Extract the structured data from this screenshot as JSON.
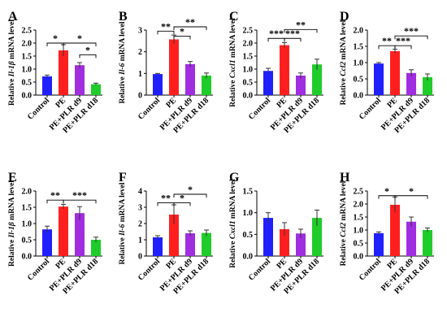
{
  "colors": {
    "bars": [
      "#1f1fff",
      "#ff1f1f",
      "#a02de0",
      "#1fcc2a"
    ],
    "axis": "#000000",
    "error": "#333333"
  },
  "chart_data": [
    {
      "type": "bar",
      "panel": "A",
      "ylabel_pre": "Relative ",
      "ylabel_gene": "Il-1β",
      "ylabel_post": " mRNA level",
      "categories": [
        "Control",
        "PE",
        "PE+PLR d9",
        "PE+PLR d18"
      ],
      "values": [
        0.72,
        1.72,
        1.15,
        0.42
      ],
      "errors": [
        0.05,
        0.22,
        0.1,
        0.04
      ],
      "ylim": [
        0,
        2.5
      ],
      "yticks": [
        "0.0",
        "0.5",
        "1.0",
        "1.5",
        "2.0",
        "2.5"
      ],
      "tick_values": [
        0,
        0.5,
        1.0,
        1.5,
        2.0,
        2.5
      ],
      "sig": [
        {
          "from": 0,
          "to": 1,
          "y": 2.0,
          "label": "*"
        },
        {
          "from": 1,
          "to": 3,
          "y": 2.0,
          "label": "*"
        },
        {
          "from": 2,
          "to": 3,
          "y": 1.55,
          "label": "*"
        }
      ]
    },
    {
      "type": "bar",
      "panel": "B",
      "ylabel_pre": "Relative ",
      "ylabel_gene": "Il-6",
      "ylabel_post": " mRNA level",
      "categories": [
        "Control",
        "PE",
        "PE+PLR d9",
        "PE+PLR d18"
      ],
      "values": [
        0.97,
        2.57,
        1.43,
        0.9
      ],
      "errors": [
        0.03,
        0.2,
        0.12,
        0.12
      ],
      "ylim": [
        0,
        3
      ],
      "yticks": [
        "0",
        "1",
        "2",
        "3"
      ],
      "tick_values": [
        0,
        1,
        2,
        3
      ],
      "sig": [
        {
          "from": 0,
          "to": 1,
          "y": 2.95,
          "label": "**"
        },
        {
          "from": 1,
          "to": 3,
          "y": 3.15,
          "label": "**"
        },
        {
          "from": 1,
          "to": 2,
          "y": 2.72,
          "label": "*"
        }
      ]
    },
    {
      "type": "bar",
      "panel": "C",
      "ylabel_pre": "Relative ",
      "ylabel_gene": "Cxcl1",
      "ylabel_post": " mRNA level",
      "categories": [
        "Control",
        "PE",
        "PE+PLR d9",
        "PE+PLR d18"
      ],
      "values": [
        0.93,
        1.92,
        0.75,
        1.18
      ],
      "errors": [
        0.1,
        0.1,
        0.1,
        0.2
      ],
      "ylim": [
        0,
        2.5
      ],
      "yticks": [
        "0.0",
        "0.5",
        "1.0",
        "1.5",
        "2.0",
        "2.5"
      ],
      "tick_values": [
        0,
        0.5,
        1.0,
        1.5,
        2.0,
        2.5
      ],
      "sig": [
        {
          "from": 0,
          "to": 1,
          "y": 2.18,
          "label": "***"
        },
        {
          "from": 1,
          "to": 2,
          "y": 2.18,
          "label": "***"
        },
        {
          "from": 1,
          "to": 3,
          "y": 2.52,
          "label": "**"
        }
      ]
    },
    {
      "type": "bar",
      "panel": "D",
      "ylabel_pre": "Relative ",
      "ylabel_gene": "Ccl2",
      "ylabel_post": " mRNA level",
      "categories": [
        "Control",
        "PE",
        "PE+PLR d9",
        "PE+PLR d18"
      ],
      "values": [
        0.97,
        1.35,
        0.68,
        0.55
      ],
      "errors": [
        0.03,
        0.06,
        0.1,
        0.1
      ],
      "ylim": [
        0,
        2.0
      ],
      "yticks": [
        "0.0",
        "0.5",
        "1.0",
        "1.5",
        "2.0"
      ],
      "tick_values": [
        0,
        0.5,
        1.0,
        1.5,
        2.0
      ],
      "sig": [
        {
          "from": 0,
          "to": 1,
          "y": 1.52,
          "label": "**"
        },
        {
          "from": 1,
          "to": 2,
          "y": 1.52,
          "label": "***"
        },
        {
          "from": 1,
          "to": 3,
          "y": 1.82,
          "label": "***"
        }
      ]
    },
    {
      "type": "bar",
      "panel": "E",
      "ylabel_pre": "Relative ",
      "ylabel_gene": "Il-1β",
      "ylabel_post": " mRNA level",
      "categories": [
        "Control",
        "PE",
        "PE+PLR d9",
        "PE+PLR d18"
      ],
      "values": [
        0.82,
        1.52,
        1.32,
        0.5
      ],
      "errors": [
        0.1,
        0.07,
        0.2,
        0.08
      ],
      "ylim": [
        0,
        2.0
      ],
      "yticks": [
        "0.0",
        "0.5",
        "1.0",
        "1.5",
        "2.0"
      ],
      "tick_values": [
        0,
        0.5,
        1.0,
        1.5,
        2.0
      ],
      "sig": [
        {
          "from": 0,
          "to": 1,
          "y": 1.72,
          "label": "**"
        },
        {
          "from": 1,
          "to": 3,
          "y": 1.72,
          "label": "***"
        }
      ]
    },
    {
      "type": "bar",
      "panel": "F",
      "ylabel_pre": "Relative ",
      "ylabel_gene": "Il-6",
      "ylabel_post": " mRNA level",
      "categories": [
        "Control",
        "PE",
        "PE+PLR d9",
        "PE+PLR d18"
      ],
      "values": [
        1.15,
        2.55,
        1.4,
        1.42
      ],
      "errors": [
        0.1,
        0.6,
        0.15,
        0.18
      ],
      "ylim": [
        0,
        4
      ],
      "yticks": [
        "0",
        "1",
        "2",
        "3",
        "4"
      ],
      "tick_values": [
        0,
        1,
        2,
        3,
        4
      ],
      "sig": [
        {
          "from": 0,
          "to": 1,
          "y": 3.28,
          "label": "**"
        },
        {
          "from": 1,
          "to": 2,
          "y": 3.28,
          "label": "*"
        },
        {
          "from": 1,
          "to": 3,
          "y": 3.8,
          "label": "*"
        }
      ]
    },
    {
      "type": "bar",
      "panel": "G",
      "ylabel_pre": "Relative ",
      "ylabel_gene": "Cxcl1",
      "ylabel_post": " mRNA level",
      "categories": [
        "Control",
        "PE",
        "PE+PLR d9",
        "PE+PLR d18"
      ],
      "values": [
        0.88,
        0.62,
        0.52,
        0.88
      ],
      "errors": [
        0.12,
        0.15,
        0.1,
        0.18
      ],
      "ylim": [
        0,
        1.5
      ],
      "yticks": [
        "0.0",
        "0.5",
        "1.0",
        "1.5"
      ],
      "tick_values": [
        0,
        0.5,
        1.0,
        1.5
      ],
      "sig": []
    },
    {
      "type": "bar",
      "panel": "H",
      "ylabel_pre": "Relative ",
      "ylabel_gene": "Ccl2",
      "ylabel_post": " mRNA level",
      "categories": [
        "Control",
        "PE",
        "PE+PLR d9",
        "PE+PLR d18"
      ],
      "values": [
        0.88,
        1.97,
        1.32,
        1.0
      ],
      "errors": [
        0.05,
        0.3,
        0.18,
        0.08
      ],
      "ylim": [
        0,
        2.5
      ],
      "yticks": [
        "0.0",
        "0.5",
        "1.0",
        "1.5",
        "2.0",
        "2.5"
      ],
      "tick_values": [
        0,
        0.5,
        1.0,
        1.5,
        2.0,
        2.5
      ],
      "sig": [
        {
          "from": 0,
          "to": 1,
          "y": 2.32,
          "label": "*"
        },
        {
          "from": 1,
          "to": 3,
          "y": 2.32,
          "label": "*"
        }
      ]
    }
  ]
}
